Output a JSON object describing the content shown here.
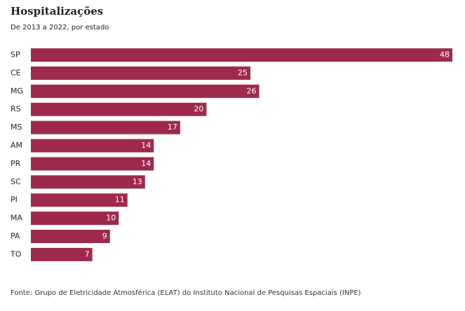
{
  "chart_data": {
    "type": "bar",
    "orientation": "horizontal",
    "title": "Hospitalizações",
    "subtitle": "De 2013 a 2022, por estado",
    "categories": [
      "SP",
      "CE",
      "MG",
      "RS",
      "MS",
      "AM",
      "PR",
      "SC",
      "PI",
      "MA",
      "PA",
      "TO"
    ],
    "values": [
      48,
      25,
      26,
      20,
      17,
      14,
      14,
      13,
      11,
      10,
      9,
      7
    ],
    "color": "#9e2a4b",
    "source": "Fonte: Grupo de Eletricidade Atmosférica (ELAT) do Instituto Nacional de Pesquisas Espaciais (INPE)"
  }
}
